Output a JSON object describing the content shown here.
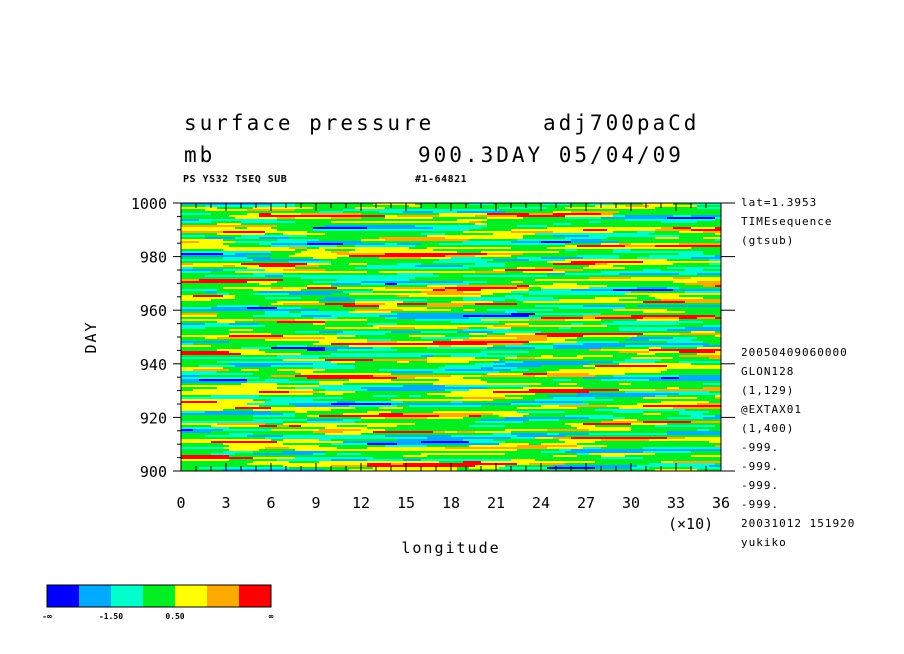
{
  "title": {
    "variable": "surface pressure",
    "run_name": "adj700paCd",
    "unit": "mb",
    "time_label": "900.3DAY 05/04/09",
    "dataset": "PS YS32 TSEQ SUB",
    "record": "#1-64821"
  },
  "side_info_top": [
    "lat=1.3953",
    "TIMEsequence",
    "(gtsub)"
  ],
  "side_info_bottom": [
    "20050409060000",
    "GLON128",
    "(1,129)",
    "@EXTAX01",
    "(1,400)",
    "-999.",
    "-999.",
    "-999.",
    "-999.",
    "20031012 151920",
    "yukiko"
  ],
  "colorbar": {
    "colors": [
      "#0000ff",
      "#00aaff",
      "#00ffcc",
      "#00ee22",
      "#ffff00",
      "#ffaa00",
      "#ff0000"
    ],
    "labels": [
      "-∞",
      "-1.50",
      "0.50",
      "∞"
    ]
  },
  "chart_data": {
    "type": "heatmap",
    "title": "surface pressure",
    "xlabel": "longitude",
    "ylabel": "DAY",
    "x_multiplier": "(×10)",
    "xlim": [
      0,
      36
    ],
    "ylim": [
      900,
      1000
    ],
    "x_ticks": [
      0,
      3,
      6,
      9,
      12,
      15,
      18,
      21,
      24,
      27,
      30,
      33,
      36
    ],
    "y_ticks": [
      900,
      920,
      940,
      960,
      980,
      1000
    ],
    "color_levels": [
      "-∞",
      "-1.50",
      "0.50",
      "∞"
    ],
    "dominant_band": "green/yellow near 0, with elongated zonal blue streaks near days 925, 940, 968, 985 and red/orange patches near days 928, 935, 978"
  }
}
